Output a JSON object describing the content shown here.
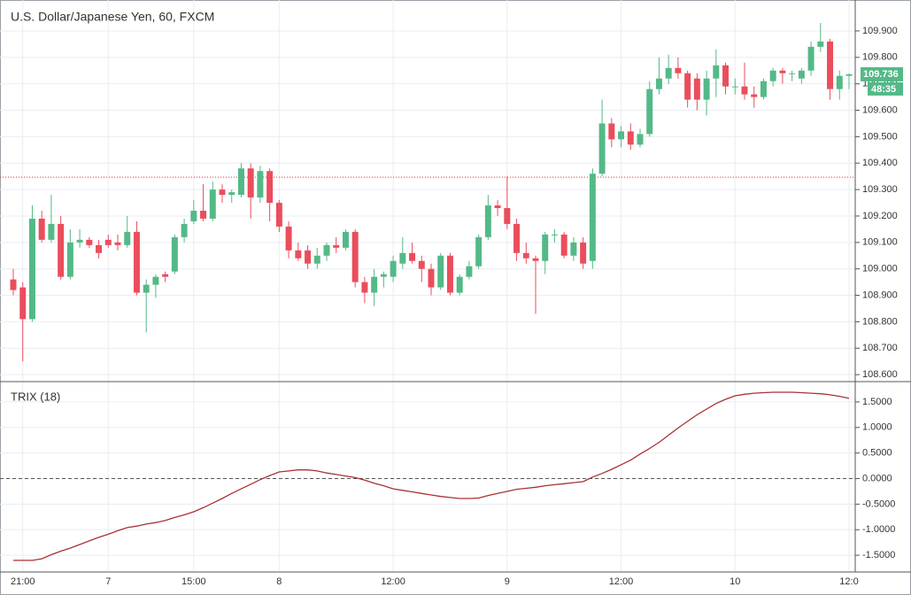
{
  "chart_data": [
    {
      "type": "candlestick",
      "title": "U.S. Dollar/Japanese Yen, 60, FXCM",
      "categories": [
        null,
        "21:00",
        null,
        null,
        null,
        null,
        null,
        null,
        null,
        null,
        "7",
        null,
        null,
        null,
        null,
        null,
        null,
        null,
        null,
        "15:00",
        null,
        null,
        null,
        null,
        null,
        null,
        null,
        null,
        "8",
        null,
        null,
        null,
        null,
        null,
        null,
        null,
        null,
        null,
        null,
        null,
        "12:00",
        null,
        null,
        null,
        null,
        null,
        null,
        null,
        null,
        null,
        null,
        null,
        "9",
        null,
        null,
        null,
        null,
        null,
        null,
        null,
        null,
        null,
        null,
        null,
        "12:00",
        null,
        null,
        null,
        null,
        null,
        null,
        null,
        null,
        null,
        null,
        null,
        "10",
        null,
        null,
        null,
        null,
        null,
        null,
        null,
        null,
        null,
        null,
        null,
        "12:0"
      ],
      "open": [
        108.96,
        108.93,
        108.81,
        109.19,
        109.11,
        109.17,
        108.97,
        109.1,
        109.11,
        109.09,
        109.11,
        109.1,
        109.09,
        109.14,
        108.91,
        108.94,
        108.98,
        108.99,
        109.12,
        109.18,
        109.22,
        109.19,
        109.3,
        109.28,
        109.28,
        109.38,
        109.27,
        109.37,
        109.25,
        109.16,
        109.07,
        109.07,
        109.02,
        109.05,
        109.09,
        109.08,
        109.14,
        108.95,
        108.91,
        108.97,
        108.97,
        109.02,
        109.06,
        109.03,
        109.0,
        108.93,
        109.05,
        108.91,
        108.97,
        109.01,
        109.12,
        109.24,
        109.23,
        109.17,
        109.06,
        109.04,
        109.03,
        109.13,
        109.13,
        109.05,
        109.1,
        109.03,
        109.36,
        109.55,
        109.49,
        109.52,
        109.47,
        109.51,
        109.68,
        109.72,
        109.76,
        109.74,
        109.72,
        109.64,
        109.72,
        109.77,
        109.69,
        109.69,
        109.66,
        109.65,
        109.71,
        109.75,
        109.74,
        109.72,
        109.75,
        109.84,
        109.86,
        109.68,
        109.73
      ],
      "high": [
        109.0,
        108.95,
        109.24,
        109.22,
        109.28,
        109.2,
        109.15,
        109.15,
        109.12,
        109.11,
        109.13,
        109.13,
        109.2,
        109.18,
        108.96,
        108.98,
        108.99,
        109.13,
        109.19,
        109.26,
        109.32,
        109.33,
        109.32,
        109.3,
        109.4,
        109.4,
        109.39,
        109.38,
        109.26,
        109.18,
        109.1,
        109.09,
        109.08,
        109.1,
        109.12,
        109.15,
        109.15,
        108.97,
        109.0,
        108.99,
        109.05,
        109.12,
        109.1,
        109.05,
        109.02,
        109.06,
        109.06,
        108.98,
        109.03,
        109.13,
        109.28,
        109.26,
        109.35,
        109.19,
        109.1,
        109.05,
        109.14,
        109.15,
        109.14,
        109.12,
        109.12,
        109.38,
        109.64,
        109.57,
        109.54,
        109.55,
        109.53,
        109.71,
        109.8,
        109.81,
        109.8,
        109.75,
        109.74,
        109.75,
        109.83,
        109.78,
        109.72,
        109.78,
        109.69,
        109.72,
        109.76,
        109.76,
        109.75,
        109.76,
        109.86,
        109.93,
        109.87,
        109.75,
        109.74
      ],
      "low": [
        108.9,
        108.65,
        108.8,
        109.1,
        109.1,
        108.96,
        108.96,
        109.08,
        109.08,
        109.04,
        109.08,
        109.07,
        109.08,
        108.9,
        108.76,
        108.89,
        108.95,
        108.98,
        109.1,
        109.17,
        109.18,
        109.18,
        109.25,
        109.25,
        109.27,
        109.19,
        109.25,
        109.18,
        109.14,
        109.04,
        109.03,
        109.0,
        109.0,
        109.03,
        109.06,
        109.07,
        108.93,
        108.87,
        108.86,
        108.93,
        108.95,
        109.0,
        109.02,
        108.95,
        108.9,
        108.92,
        108.9,
        108.9,
        108.96,
        109.0,
        109.11,
        109.2,
        109.15,
        109.03,
        109.02,
        108.83,
        108.98,
        109.1,
        109.04,
        109.03,
        109.0,
        109.0,
        109.35,
        109.46,
        109.46,
        109.45,
        109.46,
        109.5,
        109.66,
        109.7,
        109.72,
        109.61,
        109.6,
        109.58,
        109.65,
        109.66,
        109.66,
        109.64,
        109.61,
        109.64,
        109.69,
        109.7,
        109.71,
        109.7,
        109.73,
        109.82,
        109.64,
        109.64,
        109.68
      ],
      "close": [
        108.92,
        108.81,
        109.19,
        109.11,
        109.17,
        108.97,
        109.1,
        109.11,
        109.09,
        109.06,
        109.09,
        109.09,
        109.14,
        108.91,
        108.94,
        108.97,
        108.97,
        109.12,
        109.17,
        109.22,
        109.19,
        109.3,
        109.28,
        109.29,
        109.38,
        109.27,
        109.37,
        109.25,
        109.16,
        109.07,
        109.04,
        109.02,
        109.05,
        109.09,
        109.08,
        109.14,
        108.95,
        108.91,
        108.97,
        108.98,
        109.03,
        109.06,
        109.03,
        109.0,
        108.93,
        109.05,
        108.91,
        108.97,
        109.01,
        109.12,
        109.24,
        109.23,
        109.17,
        109.06,
        109.04,
        109.03,
        109.13,
        109.13,
        109.05,
        109.1,
        109.02,
        109.36,
        109.55,
        109.49,
        109.52,
        109.47,
        109.51,
        109.68,
        109.72,
        109.76,
        109.74,
        109.64,
        109.64,
        109.72,
        109.77,
        109.69,
        109.69,
        109.66,
        109.65,
        109.71,
        109.75,
        109.74,
        109.74,
        109.75,
        109.84,
        109.86,
        109.68,
        109.73,
        109.736
      ],
      "up_color": "#53b987",
      "down_color": "#eb4d5c",
      "ylim": [
        108.577,
        110.017
      ],
      "yticks": [
        {
          "value": 108.6,
          "label": "108.600"
        },
        {
          "value": 108.7,
          "label": "108.700"
        },
        {
          "value": 108.8,
          "label": "108.800"
        },
        {
          "value": 108.9,
          "label": "108.900"
        },
        {
          "value": 109.0,
          "label": "109.000"
        },
        {
          "value": 109.1,
          "label": "109.100"
        },
        {
          "value": 109.2,
          "label": "109.200"
        },
        {
          "value": 109.3,
          "label": "109.300"
        },
        {
          "value": 109.4,
          "label": "109.400"
        },
        {
          "value": 109.5,
          "label": "109.500"
        },
        {
          "value": 109.6,
          "label": "109.600"
        },
        {
          "value": 109.7,
          "label": "109.700"
        },
        {
          "value": 109.8,
          "label": "109.800"
        },
        {
          "value": 109.9,
          "label": "109.900"
        }
      ],
      "grid": true,
      "last_price": 109.736,
      "countdown": "48:35",
      "reference_line": 109.347,
      "reference_color": "#e03030"
    },
    {
      "type": "line",
      "title": "TRIX (18)",
      "color": "#a83232",
      "values": [
        -1.6,
        -1.6,
        -1.6,
        -1.57,
        -1.49,
        -1.42,
        -1.36,
        -1.29,
        -1.22,
        -1.15,
        -1.09,
        -1.02,
        -0.96,
        -0.93,
        -0.89,
        -0.86,
        -0.82,
        -0.76,
        -0.71,
        -0.65,
        -0.57,
        -0.48,
        -0.39,
        -0.29,
        -0.2,
        -0.11,
        -0.02,
        0.06,
        0.13,
        0.15,
        0.17,
        0.17,
        0.15,
        0.11,
        0.08,
        0.05,
        0.02,
        -0.03,
        -0.09,
        -0.14,
        -0.2,
        -0.23,
        -0.26,
        -0.29,
        -0.32,
        -0.35,
        -0.37,
        -0.39,
        -0.39,
        -0.38,
        -0.33,
        -0.29,
        -0.25,
        -0.21,
        -0.19,
        -0.17,
        -0.14,
        -0.12,
        -0.1,
        -0.08,
        -0.06,
        0.03,
        0.1,
        0.18,
        0.27,
        0.36,
        0.48,
        0.59,
        0.71,
        0.85,
        0.99,
        1.12,
        1.25,
        1.36,
        1.47,
        1.55,
        1.62,
        1.65,
        1.67,
        1.68,
        1.69,
        1.69,
        1.69,
        1.68,
        1.67,
        1.66,
        1.64,
        1.61,
        1.57
      ],
      "ylim": [
        -1.81,
        1.88
      ],
      "yticks": [
        {
          "value": 1.5,
          "label": "1.5000"
        },
        {
          "value": 1,
          "label": "1.0000"
        },
        {
          "value": 0.5,
          "label": "0.5000"
        },
        {
          "value": 0,
          "label": "0.0000"
        },
        {
          "value": -0.5,
          "label": "-0.5000"
        },
        {
          "value": -1,
          "label": "-1.0000"
        },
        {
          "value": -1.5,
          "label": "-1.5000"
        }
      ],
      "zero_line": 0,
      "grid": true
    }
  ]
}
